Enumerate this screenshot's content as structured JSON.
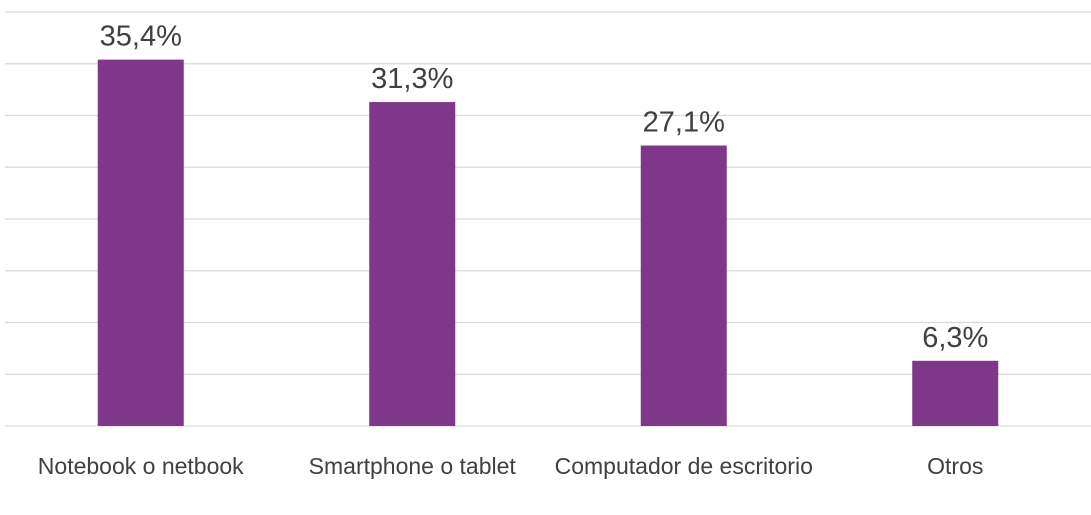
{
  "chart_data": {
    "type": "bar",
    "categories": [
      "Notebook o netbook",
      "Smartphone o tablet",
      "Computador de escritorio",
      "Otros"
    ],
    "values": [
      35.4,
      31.3,
      27.1,
      6.3
    ],
    "value_labels": [
      "35,4%",
      "31,3%",
      "27,1%",
      "6,3%"
    ],
    "color": "#7f378a",
    "ylim": [
      0,
      40
    ],
    "yticks": [
      0,
      5,
      10,
      15,
      20,
      25,
      30,
      35,
      40
    ],
    "grid": true
  }
}
